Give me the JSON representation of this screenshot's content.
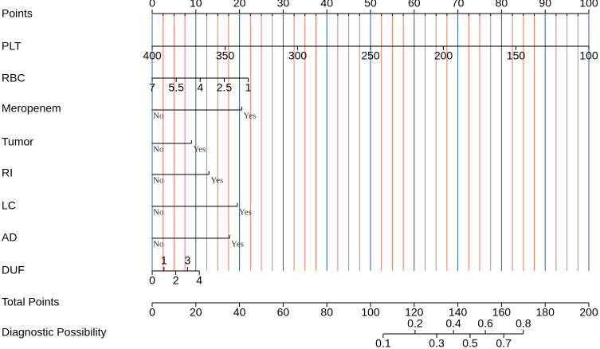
{
  "chart_data": {
    "type": "nomogram",
    "points_lim": [
      0,
      100
    ],
    "total_lim": [
      0,
      200
    ],
    "grid": true,
    "grid_major_color": "#2a62a6",
    "grid_minor_color": "#ee7a5f",
    "minor_grid": [
      2.5,
      5,
      7.5,
      12.5,
      15,
      17.5,
      22.5,
      25,
      27.5,
      32.5,
      35,
      37.5,
      42.5,
      45,
      47.5,
      52.5,
      55,
      57.5,
      62.5,
      65,
      67.5,
      72.5,
      75,
      77.5,
      82.5,
      85,
      87.5,
      92.5,
      95,
      97.5
    ],
    "rows": [
      {
        "label": "Points",
        "scale": "points",
        "labels": "above",
        "ticks": [
          {
            "value": 0,
            "at": 0
          },
          {
            "value": 10,
            "at": 10
          },
          {
            "value": 20,
            "at": 20
          },
          {
            "value": 30,
            "at": 30
          },
          {
            "value": 40,
            "at": 40
          },
          {
            "value": 50,
            "at": 50
          },
          {
            "value": 60,
            "at": 60
          },
          {
            "value": 70,
            "at": 70
          },
          {
            "value": 80,
            "at": 80
          },
          {
            "value": 90,
            "at": 90
          },
          {
            "value": 100,
            "at": 100
          }
        ]
      },
      {
        "label": "PLT",
        "scale": "points",
        "labels": "below",
        "ticks": [
          {
            "value": 400,
            "at": 0
          },
          {
            "value": 350,
            "at": 16.7
          },
          {
            "value": 300,
            "at": 33.3
          },
          {
            "value": 250,
            "at": 50
          },
          {
            "value": 200,
            "at": 66.7
          },
          {
            "value": 150,
            "at": 83.3
          },
          {
            "value": 100,
            "at": 100
          }
        ]
      },
      {
        "label": "RBC",
        "scale": "points",
        "labels": "below",
        "ticks": [
          {
            "value": 7,
            "at": 0
          },
          {
            "value": 5.5,
            "at": 5.5
          },
          {
            "value": 4,
            "at": 11
          },
          {
            "value": 2.5,
            "at": 16.5
          },
          {
            "value": 1,
            "at": 22
          }
        ]
      },
      {
        "label": "Meropenem",
        "scale": "points",
        "labels": "category",
        "ticks": [
          {
            "label": "No",
            "at": 0
          },
          {
            "label": "Yes",
            "at": 20.5
          }
        ]
      },
      {
        "label": "Tumor",
        "scale": "points",
        "labels": "category",
        "ticks": [
          {
            "label": "No",
            "at": 0
          },
          {
            "label": "Yes",
            "at": 9
          }
        ]
      },
      {
        "label": "RI",
        "scale": "points",
        "labels": "category",
        "ticks": [
          {
            "label": "No",
            "at": 0
          },
          {
            "label": "Yes",
            "at": 13
          }
        ]
      },
      {
        "label": "LC",
        "scale": "points",
        "labels": "category",
        "ticks": [
          {
            "label": "No",
            "at": 0
          },
          {
            "label": "Yes",
            "at": 19.5
          }
        ]
      },
      {
        "label": "AD",
        "scale": "points",
        "labels": "category",
        "ticks": [
          {
            "label": "No",
            "at": 0
          },
          {
            "label": "Yes",
            "at": 17.7
          }
        ]
      },
      {
        "label": "DUF",
        "scale": "points",
        "labels": "alternate",
        "ticks": [
          {
            "value": 0,
            "at": 0
          },
          {
            "value": 1,
            "at": 2.7
          },
          {
            "value": 2,
            "at": 5.4
          },
          {
            "value": 3,
            "at": 8.1
          },
          {
            "value": 4,
            "at": 10.8
          }
        ]
      },
      {
        "label": "Total Points",
        "scale": "total",
        "labels": "below",
        "ticks": [
          {
            "value": 0,
            "at": 0
          },
          {
            "value": 20,
            "at": 20
          },
          {
            "value": 40,
            "at": 40
          },
          {
            "value": 60,
            "at": 60
          },
          {
            "value": 80,
            "at": 80
          },
          {
            "value": 100,
            "at": 100
          },
          {
            "value": 120,
            "at": 120
          },
          {
            "value": 140,
            "at": 140
          },
          {
            "value": 160,
            "at": 160
          },
          {
            "value": 180,
            "at": 180
          },
          {
            "value": 200,
            "at": 200
          }
        ]
      },
      {
        "label": "Diagnostic Possibility",
        "scale": "total",
        "labels": "alternate-up",
        "ticks": [
          {
            "value": 0.1,
            "at": 105.8
          },
          {
            "value": 0.2,
            "at": 120.4
          },
          {
            "value": 0.3,
            "at": 130.3
          },
          {
            "value": 0.4,
            "at": 138
          },
          {
            "value": 0.5,
            "at": 145.6
          },
          {
            "value": 0.6,
            "at": 152.6
          },
          {
            "value": 0.7,
            "at": 161
          },
          {
            "value": 0.8,
            "at": 170
          }
        ]
      }
    ]
  }
}
